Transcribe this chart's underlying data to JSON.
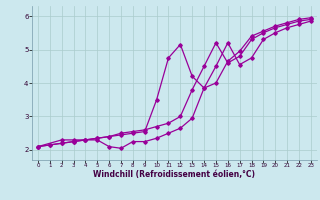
{
  "xlabel": "Windchill (Refroidissement éolien,°C)",
  "background_color": "#cce8ee",
  "grid_color": "#aacccc",
  "line_color": "#990099",
  "xlim": [
    -0.5,
    23.5
  ],
  "ylim": [
    1.7,
    6.3
  ],
  "xticks": [
    0,
    1,
    2,
    3,
    4,
    5,
    6,
    7,
    8,
    9,
    10,
    11,
    12,
    13,
    14,
    15,
    16,
    17,
    18,
    19,
    20,
    21,
    22,
    23
  ],
  "yticks": [
    2,
    3,
    4,
    5,
    6
  ],
  "line1_x": [
    0,
    1,
    2,
    3,
    4,
    5,
    6,
    7,
    8,
    9,
    10,
    11,
    12,
    13,
    14,
    15,
    16,
    17,
    18,
    19,
    20,
    21,
    22,
    23
  ],
  "line1_y": [
    2.1,
    2.15,
    2.2,
    2.25,
    2.3,
    2.35,
    2.4,
    2.5,
    2.55,
    2.6,
    2.7,
    2.8,
    3.0,
    3.8,
    4.5,
    5.2,
    4.6,
    4.8,
    5.3,
    5.5,
    5.65,
    5.75,
    5.85,
    5.9
  ],
  "line2_x": [
    0,
    2,
    3,
    4,
    5,
    6,
    7,
    8,
    9,
    10,
    11,
    12,
    13,
    14,
    15,
    16,
    17,
    18,
    19,
    20,
    21,
    22,
    23
  ],
  "line2_y": [
    2.1,
    2.3,
    2.3,
    2.3,
    2.3,
    2.1,
    2.05,
    2.25,
    2.25,
    2.35,
    2.5,
    2.65,
    2.95,
    3.85,
    4.5,
    5.2,
    4.55,
    4.75,
    5.3,
    5.5,
    5.65,
    5.75,
    5.85
  ],
  "line3_x": [
    0,
    1,
    2,
    3,
    4,
    5,
    6,
    7,
    8,
    9,
    10,
    11,
    12,
    13,
    14,
    15,
    16,
    17,
    18,
    19,
    20,
    21,
    22,
    23
  ],
  "line3_y": [
    2.1,
    2.15,
    2.2,
    2.25,
    2.3,
    2.35,
    2.4,
    2.45,
    2.5,
    2.55,
    3.5,
    4.75,
    5.15,
    4.2,
    3.85,
    4.0,
    4.65,
    4.95,
    5.4,
    5.55,
    5.7,
    5.8,
    5.9,
    5.95
  ]
}
